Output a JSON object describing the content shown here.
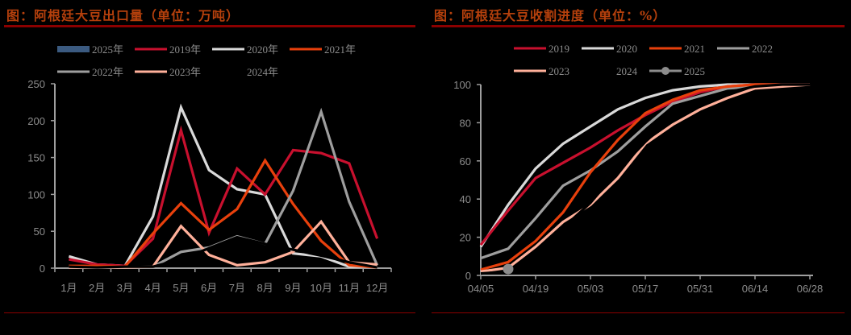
{
  "left": {
    "title": "图：阿根廷大豆出口量（单位：万吨）",
    "legend": [
      {
        "label": "2025年",
        "color": "#3b5a80",
        "style": "bar"
      },
      {
        "label": "2019年",
        "color": "#c8102e",
        "style": "line"
      },
      {
        "label": "2020年",
        "color": "#d9d9d9",
        "style": "line"
      },
      {
        "label": "2021年",
        "color": "#e8400c",
        "style": "line"
      },
      {
        "label": "2022年",
        "color": "#9e9e9e",
        "style": "line"
      },
      {
        "label": "2023年",
        "color": "#ffb09a",
        "style": "line"
      },
      {
        "label": "2024年",
        "color": "#000000",
        "style": "line"
      }
    ],
    "y_ticks": [
      "0",
      "50",
      "100",
      "150",
      "200",
      "250"
    ],
    "x_ticks": [
      "1月",
      "2月",
      "3月",
      "4月",
      "5月",
      "6月",
      "7月",
      "8月",
      "9月",
      "10月",
      "11月",
      "12月"
    ]
  },
  "right": {
    "title": "图：阿根廷大豆收割进度（单位：%）",
    "legend": [
      {
        "label": "2019",
        "color": "#c8102e",
        "style": "line"
      },
      {
        "label": "2020",
        "color": "#d9d9d9",
        "style": "line"
      },
      {
        "label": "2021",
        "color": "#e8400c",
        "style": "line"
      },
      {
        "label": "2022",
        "color": "#9e9e9e",
        "style": "line"
      },
      {
        "label": "2023",
        "color": "#ffb09a",
        "style": "line"
      },
      {
        "label": "2024",
        "color": "#000000",
        "style": "line"
      },
      {
        "label": "2025",
        "color": "#8c8c8c",
        "style": "marker"
      }
    ],
    "y_ticks": [
      "0",
      "20",
      "40",
      "60",
      "80",
      "100"
    ],
    "x_ticks": [
      "04/05",
      "04/19",
      "05/03",
      "05/17",
      "05/31",
      "06/14",
      "06/28"
    ]
  },
  "chart_data": [
    {
      "type": "line",
      "title": "图：阿根廷大豆出口量（单位：万吨）",
      "xlabel": "",
      "ylabel": "万吨",
      "ylim": [
        0,
        250
      ],
      "grid": false,
      "legend_position": "top",
      "categories": [
        "1月",
        "2月",
        "3月",
        "4月",
        "5月",
        "6月",
        "7月",
        "8月",
        "9月",
        "10月",
        "11月",
        "12月"
      ],
      "series": [
        {
          "name": "2025年",
          "color": "#3b5a80",
          "values": []
        },
        {
          "name": "2019年",
          "color": "#c8102e",
          "values": [
            12,
            5,
            3,
            40,
            187,
            48,
            135,
            100,
            160,
            156,
            142,
            40
          ]
        },
        {
          "name": "2020年",
          "color": "#d9d9d9",
          "values": [
            16,
            5,
            3,
            70,
            218,
            133,
            107,
            100,
            20,
            16,
            2,
            2
          ]
        },
        {
          "name": "2021年",
          "color": "#e8400c",
          "values": [
            3,
            3,
            2,
            47,
            88,
            52,
            80,
            146,
            87,
            37,
            4,
            1
          ]
        },
        {
          "name": "2022年",
          "color": "#9e9e9e",
          "values": [
            1,
            1,
            1,
            2,
            22,
            28,
            43,
            33,
            105,
            212,
            90,
            4
          ]
        },
        {
          "name": "2023年",
          "color": "#ffb09a",
          "values": [
            1,
            1,
            1,
            2,
            57,
            18,
            4,
            8,
            22,
            63,
            8,
            5
          ]
        },
        {
          "name": "2024年",
          "color": "#000000",
          "values": [
            2,
            1,
            2,
            2,
            12,
            27,
            42,
            33,
            25,
            17,
            8,
            1
          ]
        }
      ]
    },
    {
      "type": "line",
      "title": "图：阿根廷大豆收割进度（单位：%）",
      "xlabel": "",
      "ylabel": "%",
      "ylim": [
        0,
        100
      ],
      "grid": false,
      "legend_position": "top",
      "x": [
        "04/05",
        "04/12",
        "04/19",
        "04/26",
        "05/03",
        "05/10",
        "05/17",
        "05/24",
        "05/31",
        "06/07",
        "06/14",
        "06/21",
        "06/28"
      ],
      "series": [
        {
          "name": "2019",
          "color": "#c8102e",
          "values": [
            16,
            34,
            51,
            59,
            67,
            76,
            84,
            91,
            96,
            99,
            100,
            100,
            100
          ]
        },
        {
          "name": "2020",
          "color": "#d9d9d9",
          "values": [
            15,
            37,
            56,
            69,
            78,
            87,
            93,
            97,
            99,
            100,
            100,
            100,
            100
          ]
        },
        {
          "name": "2021",
          "color": "#e8400c",
          "values": [
            3,
            7,
            18,
            33,
            54,
            71,
            85,
            92,
            97,
            99,
            100,
            100,
            100
          ]
        },
        {
          "name": "2022",
          "color": "#9e9e9e",
          "values": [
            9,
            14,
            30,
            47,
            55,
            65,
            78,
            90,
            94,
            98,
            99,
            100,
            100
          ]
        },
        {
          "name": "2023",
          "color": "#ffb09a",
          "values": [
            2,
            4,
            15,
            28,
            37,
            51,
            69,
            79,
            87,
            93,
            98,
            99,
            100
          ]
        },
        {
          "name": "2024",
          "color": "#000000",
          "values": [
            1,
            2,
            12,
            25,
            38,
            55,
            70,
            83,
            91,
            96,
            99,
            100,
            100
          ]
        },
        {
          "name": "2025",
          "color": "#8c8c8c",
          "values": [
            null,
            2.5
          ]
        }
      ]
    }
  ]
}
